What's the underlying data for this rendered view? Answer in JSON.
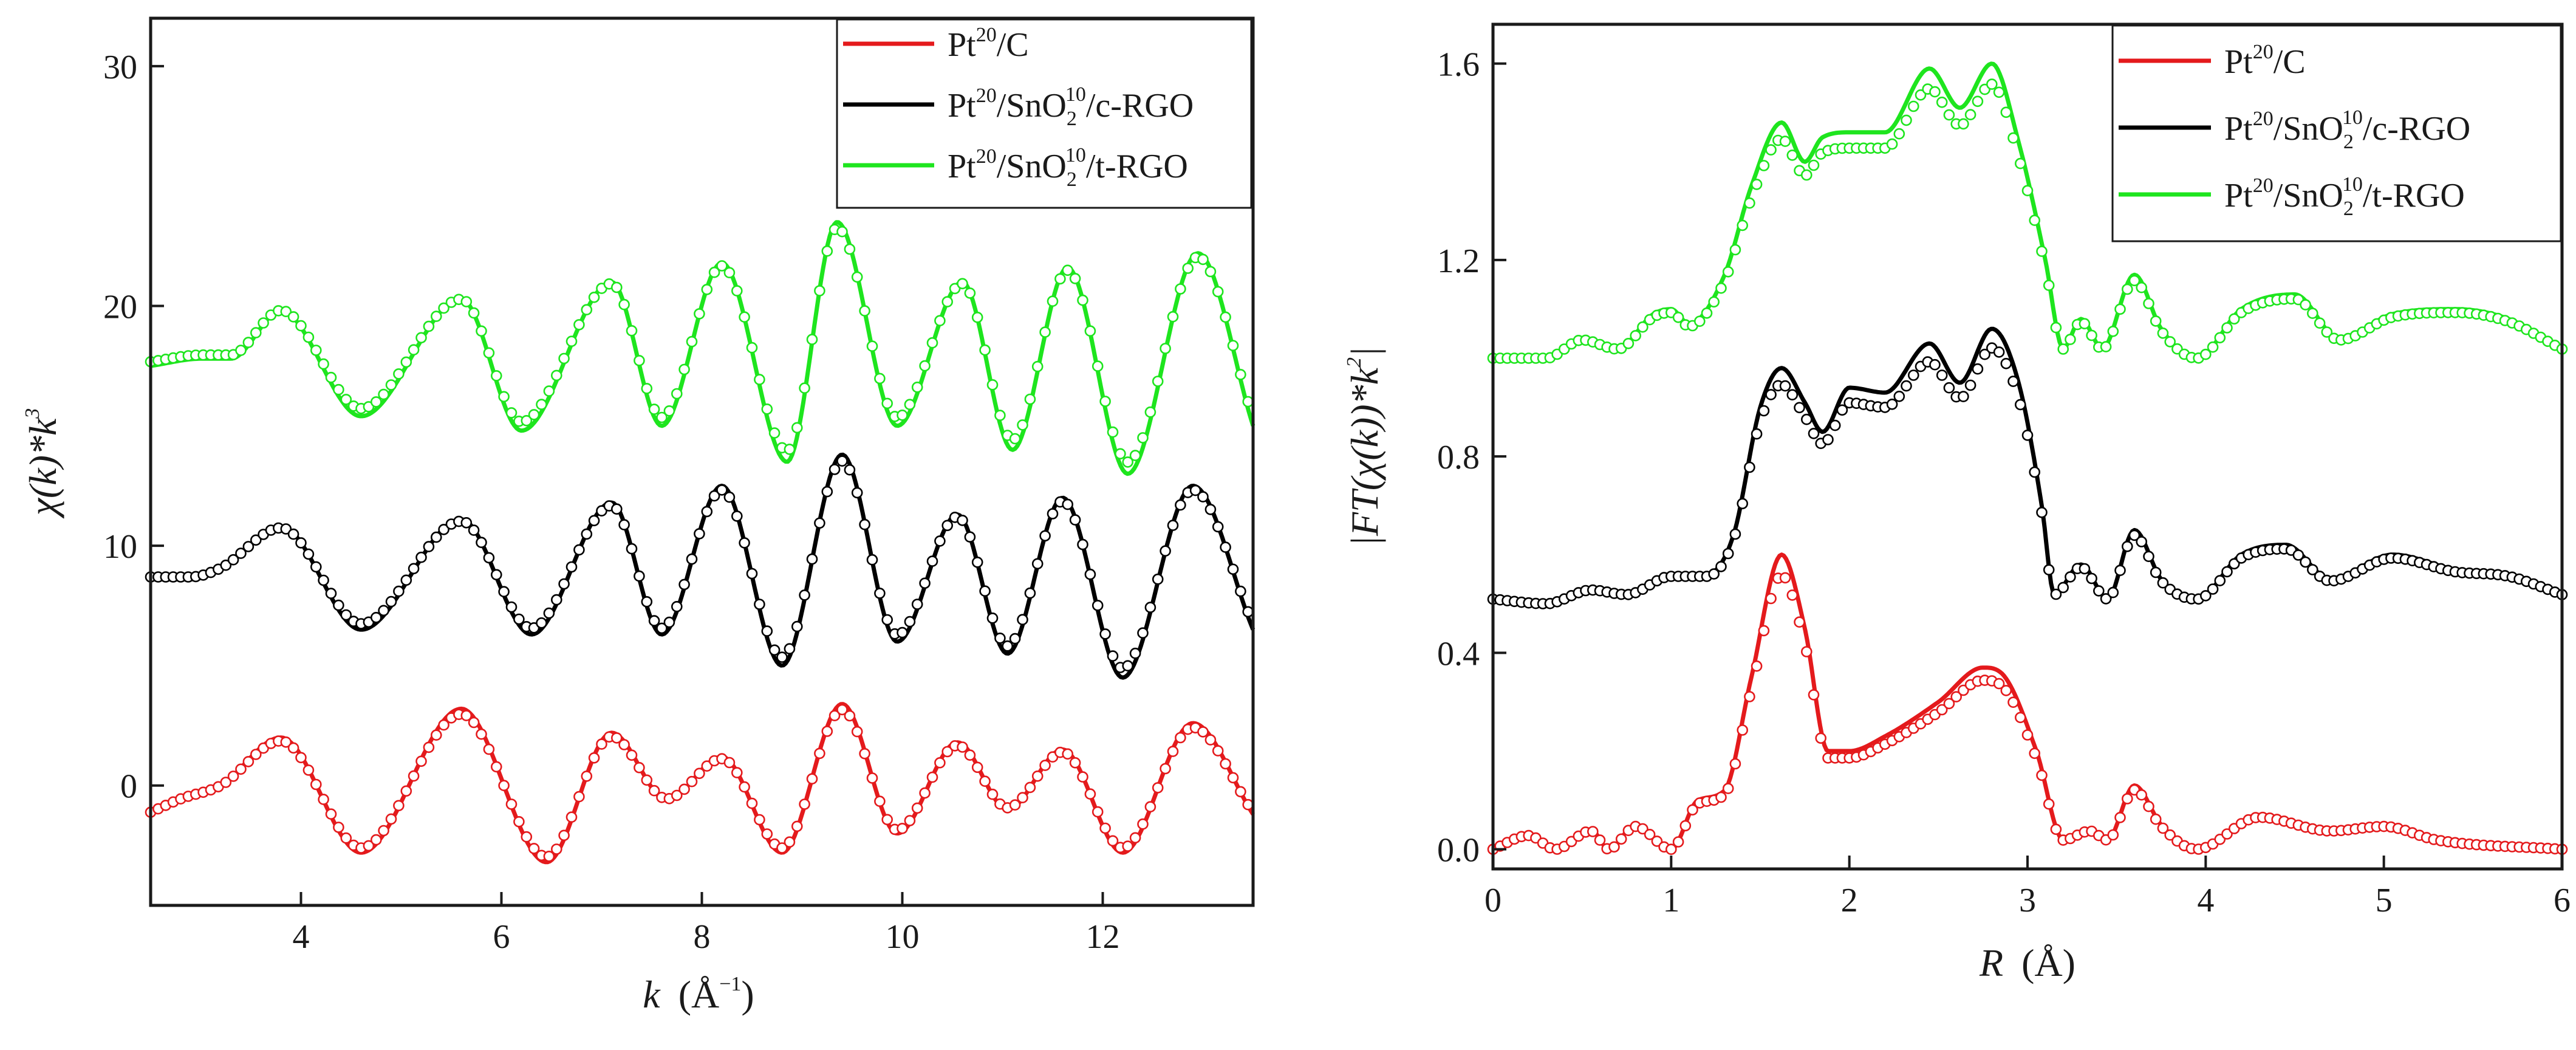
{
  "chart_data": [
    {
      "type": "line",
      "panel": "left",
      "xlabel": "k (Å⁻¹)",
      "xlabel_var": "k",
      "xlabel_unit": "(Å",
      "xlabel_exp": "−1",
      "xlabel_close": ")",
      "ylabel": "χ(k)*k^3",
      "ylabel_main": "χ(k)*k",
      "ylabel_exp": "3",
      "xlim": [
        2.5,
        13.5
      ],
      "ylim": [
        -5,
        32
      ],
      "xticks": [
        4,
        6,
        8,
        10,
        12
      ],
      "xtick_labels": [
        "4",
        "6",
        "8",
        "10",
        "12"
      ],
      "yticks": [
        0,
        10,
        20,
        30
      ],
      "ytick_labels": [
        "0",
        "10",
        "20",
        "30"
      ],
      "legend_position": "top-right",
      "legend": [
        {
          "base": "Pt",
          "sup1": "20",
          "mid": "/C",
          "sub": "",
          "sup2": "",
          "end": "",
          "color": "#e41a1c"
        },
        {
          "base": "Pt",
          "sup1": "20",
          "mid": "/SnO",
          "sub": "2",
          "sup2": "10",
          "end": "/c-RGO",
          "color": "#000000"
        },
        {
          "base": "Pt",
          "sup1": "20",
          "mid": "/SnO",
          "sub": "2",
          "sup2": "10",
          "end": "/t-RGO",
          "color": "#1ee51e"
        }
      ],
      "series": [
        {
          "name": "Pt20/C",
          "color": "#e41a1c",
          "offset": 0,
          "style": "line+circles",
          "knots_x": [
            2.5,
            2.8,
            3.2,
            3.8,
            4.6,
            5.6,
            6.45,
            7.1,
            7.65,
            8.2,
            8.8,
            9.4,
            9.95,
            10.55,
            11.05,
            11.6,
            12.2,
            12.9,
            13.5
          ],
          "knots_y": [
            -1.2,
            -0.6,
            0.0,
            2.0,
            -2.8,
            3.2,
            -3.2,
            2.2,
            -0.6,
            1.2,
            -2.8,
            3.4,
            -2.0,
            1.8,
            -1.0,
            1.5,
            -2.8,
            2.6,
            -1.2
          ]
        },
        {
          "name": "Pt20/SnO2 10/c-RGO",
          "color": "#000000",
          "offset": 10,
          "style": "line+circles",
          "knots_x": [
            2.5,
            2.9,
            3.2,
            3.8,
            4.6,
            5.6,
            6.3,
            7.1,
            7.6,
            8.2,
            8.8,
            9.4,
            9.95,
            10.55,
            11.05,
            11.6,
            12.2,
            12.9,
            13.5
          ],
          "knots_y": [
            -1.4,
            -1.4,
            -1.0,
            0.8,
            -3.5,
            1.1,
            -3.7,
            1.8,
            -3.7,
            2.5,
            -5.0,
            3.8,
            -4.0,
            1.3,
            -4.5,
            2.0,
            -5.5,
            2.5,
            -3.5
          ]
        },
        {
          "name": "Pt20/SnO2 10/t-RGO",
          "color": "#1ee51e",
          "offset": 20,
          "style": "line+circles",
          "knots_x": [
            2.5,
            3.0,
            3.3,
            3.8,
            4.6,
            5.6,
            6.2,
            7.1,
            7.6,
            8.2,
            8.85,
            9.35,
            9.95,
            10.6,
            11.1,
            11.65,
            12.25,
            12.95,
            13.5
          ],
          "knots_y": [
            -2.5,
            -2.2,
            -2.2,
            -0.2,
            -4.6,
            0.3,
            -5.2,
            1.0,
            -5.0,
            1.8,
            -6.5,
            3.5,
            -5.0,
            1.0,
            -6.0,
            1.6,
            -7.0,
            2.2,
            -5.0
          ]
        }
      ]
    },
    {
      "type": "line",
      "panel": "right",
      "xlabel": "R (Å)",
      "xlabel_var": "R",
      "xlabel_unit": "(Å)",
      "ylabel": "|FT(χ(k))*k^2|",
      "ylabel_main": "|FT(χ(k))*k",
      "ylabel_exp": "2",
      "ylabel_close": "|",
      "xlim": [
        0,
        6
      ],
      "ylim": [
        -0.04,
        1.68
      ],
      "xticks": [
        0,
        1,
        2,
        3,
        4,
        5,
        6
      ],
      "xtick_labels": [
        "0",
        "1",
        "2",
        "3",
        "4",
        "5",
        "6"
      ],
      "yticks": [
        0.0,
        0.4,
        0.8,
        1.2,
        1.6
      ],
      "ytick_labels": [
        "0.0",
        "0.4",
        "0.8",
        "1.2",
        "1.6"
      ],
      "legend_position": "top-right",
      "legend": [
        {
          "base": "Pt",
          "sup1": "20",
          "mid": "/C",
          "sub": "",
          "sup2": "",
          "end": "",
          "color": "#e41a1c"
        },
        {
          "base": "Pt",
          "sup1": "20",
          "mid": "/SnO",
          "sub": "2",
          "sup2": "10",
          "end": "/c-RGO",
          "color": "#000000"
        },
        {
          "base": "Pt",
          "sup1": "20",
          "mid": "/SnO",
          "sub": "2",
          "sup2": "10",
          "end": "/t-RGO",
          "color": "#1ee51e"
        }
      ],
      "series": [
        {
          "name": "Pt20/C",
          "color": "#e41a1c",
          "offset": 0,
          "style": "line+circles",
          "knots_x": [
            0,
            0.2,
            0.35,
            0.55,
            0.65,
            0.8,
            1.0,
            1.15,
            1.3,
            1.45,
            1.62,
            1.75,
            1.88,
            2.0,
            2.2,
            2.5,
            2.75,
            2.85,
            3.05,
            3.2,
            3.35,
            3.45,
            3.6,
            3.75,
            3.95,
            4.3,
            4.7,
            5.0,
            5.3,
            6.0
          ],
          "knots_y": [
            0.0,
            0.03,
            0.0,
            0.04,
            0.0,
            0.05,
            0.0,
            0.1,
            0.12,
            0.35,
            0.6,
            0.45,
            0.2,
            0.2,
            0.23,
            0.3,
            0.37,
            0.36,
            0.2,
            0.02,
            0.04,
            0.02,
            0.13,
            0.05,
            0.0,
            0.07,
            0.04,
            0.05,
            0.02,
            0.0
          ]
        },
        {
          "name": "Pt20/SnO2 10/c-RGO",
          "color": "#000000",
          "offset": 0.5,
          "style": "line+circles",
          "knots_x": [
            0,
            0.3,
            0.55,
            0.75,
            1.0,
            1.2,
            1.35,
            1.5,
            1.62,
            1.75,
            1.85,
            2.0,
            2.2,
            2.45,
            2.62,
            2.8,
            2.95,
            3.08,
            3.15,
            3.3,
            3.45,
            3.6,
            3.75,
            3.95,
            4.2,
            4.45,
            4.7,
            5.05,
            5.4,
            5.7,
            6.0
          ],
          "knots_y": [
            0.01,
            0.0,
            0.03,
            0.02,
            0.06,
            0.06,
            0.14,
            0.4,
            0.48,
            0.41,
            0.35,
            0.44,
            0.43,
            0.53,
            0.45,
            0.56,
            0.45,
            0.2,
            0.02,
            0.08,
            0.01,
            0.15,
            0.05,
            0.01,
            0.1,
            0.12,
            0.05,
            0.1,
            0.07,
            0.06,
            0.02
          ]
        },
        {
          "name": "Pt20/SnO2 10/t-RGO",
          "color": "#1ee51e",
          "offset": 1.0,
          "style": "line+circles",
          "knots_x": [
            0,
            0.3,
            0.5,
            0.7,
            0.9,
            1.0,
            1.1,
            1.3,
            1.45,
            1.62,
            1.75,
            1.85,
            2.0,
            2.2,
            2.45,
            2.62,
            2.8,
            2.95,
            3.1,
            3.2,
            3.3,
            3.42,
            3.6,
            3.75,
            3.95,
            4.2,
            4.5,
            4.75,
            5.05,
            5.4,
            5.7,
            6.0
          ],
          "knots_y": [
            0.0,
            0.0,
            0.04,
            0.02,
            0.09,
            0.1,
            0.07,
            0.17,
            0.35,
            0.48,
            0.4,
            0.45,
            0.46,
            0.46,
            0.59,
            0.51,
            0.6,
            0.44,
            0.2,
            0.02,
            0.08,
            0.02,
            0.17,
            0.06,
            0.0,
            0.1,
            0.13,
            0.04,
            0.09,
            0.1,
            0.08,
            0.02
          ]
        }
      ]
    }
  ]
}
